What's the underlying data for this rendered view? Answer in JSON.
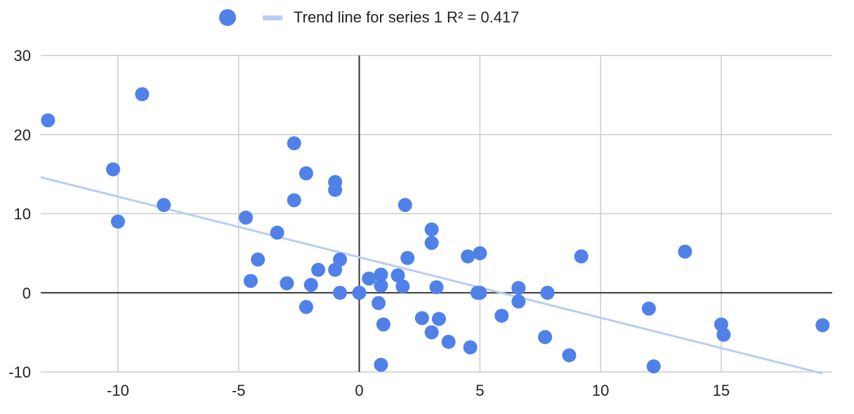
{
  "chart_data": {
    "type": "scatter",
    "legend": {
      "position": "top",
      "entries": [
        {
          "kind": "marker",
          "label": "",
          "color": "#4f81e8"
        },
        {
          "kind": "line",
          "label": "Trend line for series 1 R² = 0.417",
          "color": "#b8cdf4"
        }
      ]
    },
    "xlim": [
      -13.2,
      19.6
    ],
    "ylim": [
      -10,
      30
    ],
    "xticks": [
      -10,
      -5,
      0,
      5,
      10,
      15
    ],
    "yticks": [
      -10,
      0,
      10,
      20,
      30
    ],
    "grid": true,
    "marker_color": "#4f81e8",
    "trend_color": "#b8cdf4",
    "axis_color": "#333333",
    "grid_color": "#cccccc",
    "points": [
      {
        "x": -12.9,
        "y": 21.8
      },
      {
        "x": -9.0,
        "y": 25.1
      },
      {
        "x": -10.2,
        "y": 15.6
      },
      {
        "x": -10.0,
        "y": 9.0
      },
      {
        "x": -8.1,
        "y": 11.1
      },
      {
        "x": -2.7,
        "y": 18.9
      },
      {
        "x": -2.2,
        "y": 15.1
      },
      {
        "x": -1.0,
        "y": 14.0
      },
      {
        "x": -1.0,
        "y": 13.0
      },
      {
        "x": -2.7,
        "y": 11.7
      },
      {
        "x": -4.7,
        "y": 9.5
      },
      {
        "x": -3.4,
        "y": 7.6
      },
      {
        "x": -4.2,
        "y": 4.2
      },
      {
        "x": -0.8,
        "y": 4.2
      },
      {
        "x": -1.7,
        "y": 2.9
      },
      {
        "x": -1.0,
        "y": 2.9
      },
      {
        "x": -4.5,
        "y": 1.5
      },
      {
        "x": -3.0,
        "y": 1.2
      },
      {
        "x": -2.0,
        "y": 1.0
      },
      {
        "x": -0.8,
        "y": 0.0
      },
      {
        "x": 0.0,
        "y": 0.0
      },
      {
        "x": -2.2,
        "y": -1.8
      },
      {
        "x": 0.4,
        "y": 1.8
      },
      {
        "x": 0.9,
        "y": 2.3
      },
      {
        "x": 1.6,
        "y": 2.2
      },
      {
        "x": 0.9,
        "y": 0.9
      },
      {
        "x": 1.8,
        "y": 0.8
      },
      {
        "x": 0.8,
        "y": -1.3
      },
      {
        "x": 1.0,
        "y": -4.0
      },
      {
        "x": 0.9,
        "y": -9.1
      },
      {
        "x": 1.9,
        "y": 11.1
      },
      {
        "x": 2.0,
        "y": 4.4
      },
      {
        "x": 3.0,
        "y": 8.0
      },
      {
        "x": 3.0,
        "y": 6.3
      },
      {
        "x": 3.2,
        "y": 0.7
      },
      {
        "x": 2.6,
        "y": -3.2
      },
      {
        "x": 3.3,
        "y": -3.3
      },
      {
        "x": 3.0,
        "y": -5.0
      },
      {
        "x": 3.7,
        "y": -6.2
      },
      {
        "x": 4.6,
        "y": -6.9
      },
      {
        "x": 4.5,
        "y": 4.6
      },
      {
        "x": 5.0,
        "y": 5.0
      },
      {
        "x": 4.9,
        "y": 0.0
      },
      {
        "x": 5.0,
        "y": 0.0
      },
      {
        "x": 5.9,
        "y": -2.9
      },
      {
        "x": 6.6,
        "y": 0.6
      },
      {
        "x": 6.6,
        "y": -1.1
      },
      {
        "x": 7.8,
        "y": 0.0
      },
      {
        "x": 7.7,
        "y": -5.6
      },
      {
        "x": 8.7,
        "y": -7.9
      },
      {
        "x": 9.2,
        "y": 4.6
      },
      {
        "x": 12.0,
        "y": -2.0
      },
      {
        "x": 12.2,
        "y": -9.3
      },
      {
        "x": 13.5,
        "y": 5.2
      },
      {
        "x": 15.0,
        "y": -4.0
      },
      {
        "x": 15.1,
        "y": -5.3
      },
      {
        "x": 19.2,
        "y": -4.1
      }
    ],
    "trendline": {
      "x_start": -13.2,
      "y_start": 14.6,
      "x_end": 19.2,
      "y_end": -10.2
    }
  }
}
